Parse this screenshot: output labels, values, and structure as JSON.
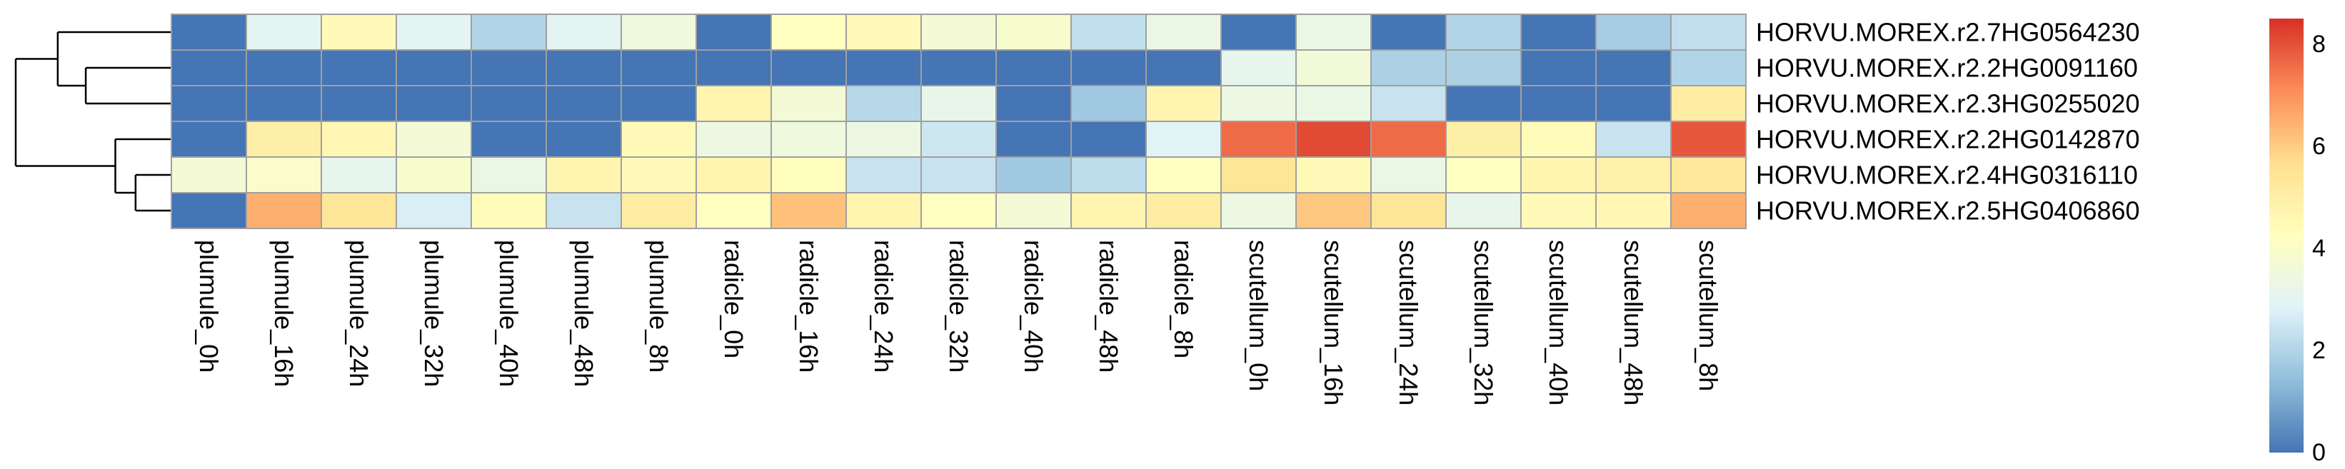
{
  "chart_data": {
    "type": "heatmap",
    "title": "",
    "rows": [
      "HORVU.MOREX.r2.7HG0564230",
      "HORVU.MOREX.r2.2HG0091160",
      "HORVU.MOREX.r2.3HG0255020",
      "HORVU.MOREX.r2.2HG0142870",
      "HORVU.MOREX.r2.4HG0316110",
      "HORVU.MOREX.r2.5HG0406860"
    ],
    "columns": [
      "plumule_0h",
      "plumule_16h",
      "plumule_24h",
      "plumule_32h",
      "plumule_40h",
      "plumule_48h",
      "plumule_8h",
      "radicle_0h",
      "radicle_16h",
      "radicle_24h",
      "radicle_32h",
      "radicle_40h",
      "radicle_48h",
      "radicle_8h",
      "scutellum_0h",
      "scutellum_16h",
      "scutellum_24h",
      "scutellum_32h",
      "scutellum_40h",
      "scutellum_48h",
      "scutellum_8h"
    ],
    "values": [
      [
        0.0,
        3.0,
        4.5,
        3.0,
        2.0,
        3.0,
        3.5,
        0.0,
        4.2,
        4.5,
        3.7,
        3.9,
        2.3,
        3.3,
        0.0,
        3.3,
        0.0,
        2.0,
        0.0,
        1.8,
        2.3
      ],
      [
        0.0,
        0.0,
        0.0,
        0.0,
        0.0,
        0.0,
        0.0,
        0.0,
        0.0,
        0.0,
        0.0,
        0.0,
        0.0,
        0.0,
        3.1,
        3.6,
        1.9,
        1.9,
        0.0,
        0.0,
        2.0
      ],
      [
        0.0,
        0.0,
        0.0,
        0.0,
        0.0,
        0.0,
        0.0,
        4.7,
        3.7,
        2.1,
        3.2,
        0.0,
        1.7,
        4.7,
        3.4,
        3.3,
        2.4,
        0.0,
        0.0,
        0.0,
        5.1
      ],
      [
        0.0,
        5.0,
        4.6,
        3.7,
        0.0,
        0.0,
        4.5,
        3.4,
        3.5,
        3.4,
        2.5,
        0.0,
        0.0,
        2.9,
        7.6,
        8.1,
        7.6,
        5.0,
        4.4,
        2.4,
        7.9
      ],
      [
        3.7,
        4.0,
        3.1,
        3.9,
        3.3,
        4.7,
        4.5,
        4.7,
        4.3,
        2.4,
        2.4,
        1.7,
        2.2,
        4.2,
        5.4,
        4.5,
        3.3,
        4.2,
        4.7,
        4.9,
        5.3
      ],
      [
        0.0,
        6.5,
        5.4,
        2.7,
        4.4,
        2.4,
        5.1,
        4.2,
        6.2,
        4.7,
        4.2,
        3.7,
        4.7,
        5.1,
        3.4,
        6.1,
        5.4,
        3.2,
        4.5,
        4.6,
        6.5
      ]
    ],
    "color_scale": {
      "min": 0,
      "max": 8.5,
      "stops": [
        "#4575B4",
        "#91BFDB",
        "#E0F3F8",
        "#FFFFBF",
        "#FEE090",
        "#FC8D59",
        "#D73027"
      ],
      "ticks": [
        0,
        2,
        4,
        6,
        8
      ]
    },
    "row_dendrogram": {
      "merges": [
        {
          "left": "r:4",
          "right": "r:5",
          "height": 0.23
        },
        {
          "left": "r:3",
          "right": "m:0",
          "height": 0.36
        },
        {
          "left": "r:1",
          "right": "r:2",
          "height": 0.55
        },
        {
          "left": "r:0",
          "right": "m:2",
          "height": 0.73
        },
        {
          "left": "m:3",
          "right": "m:1",
          "height": 1.0
        }
      ]
    },
    "grid": true,
    "legend_position": "right",
    "colors": {
      "cell_border": "#A0A0A0",
      "dendrogram": "#000000"
    }
  }
}
